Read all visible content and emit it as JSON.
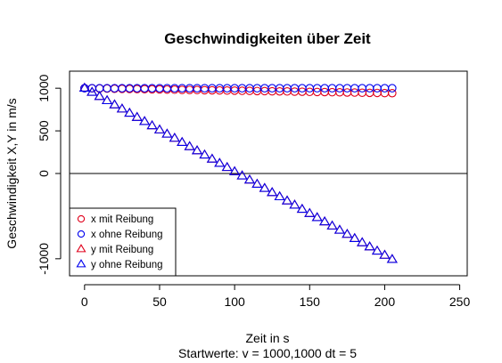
{
  "chart_data": {
    "type": "scatter",
    "title": "Geschwindigkeiten über Zeit",
    "xlabel": "Zeit in s",
    "subtitle": "Startwerte: v = 1000,1000 dt = 5",
    "ylabel": "Geschwindigkeit X,Y in m/s",
    "xlim": [
      -10,
      255
    ],
    "ylim": [
      -1200,
      1200
    ],
    "xticks": [
      0,
      50,
      100,
      150,
      200,
      250
    ],
    "yticks": [
      -1000,
      0,
      500,
      1000
    ],
    "grid": false,
    "reference_lines": [
      {
        "orientation": "horizontal",
        "y": 0
      }
    ],
    "legend_position": "bottom-left",
    "x": [
      0,
      5,
      10,
      15,
      20,
      25,
      30,
      35,
      40,
      45,
      50,
      55,
      60,
      65,
      70,
      75,
      80,
      85,
      90,
      95,
      100,
      105,
      110,
      115,
      120,
      125,
      130,
      135,
      140,
      145,
      150,
      155,
      160,
      165,
      170,
      175,
      180,
      185,
      190,
      195,
      200,
      205
    ],
    "series": [
      {
        "name": "x mit Reibung",
        "marker": "circle",
        "color": "#e0001b",
        "values": [
          1000,
          999,
          997,
          996,
          994,
          993,
          991,
          990,
          989,
          987,
          986,
          984,
          983,
          981,
          980,
          979,
          977,
          976,
          974,
          973,
          972,
          970,
          969,
          967,
          966,
          964,
          963,
          962,
          960,
          959,
          957,
          956,
          955,
          953,
          952,
          950,
          949,
          947,
          946,
          945,
          943,
          942
        ]
      },
      {
        "name": "x ohne Reibung",
        "marker": "circle",
        "color": "#0000ee",
        "values": [
          1000,
          1000,
          1000,
          1000,
          1000,
          1000,
          1000,
          1000,
          1000,
          1000,
          1000,
          1000,
          1000,
          1000,
          1000,
          1000,
          1000,
          1000,
          1000,
          1000,
          1000,
          1000,
          1000,
          1000,
          1000,
          1000,
          1000,
          1000,
          1000,
          1000,
          1000,
          1000,
          1000,
          1000,
          1000,
          1000,
          1000,
          1000,
          1000,
          1000,
          1000,
          1000
        ]
      },
      {
        "name": "y mit Reibung",
        "marker": "triangle",
        "color": "#e0001b",
        "values": [
          1000,
          951,
          902,
          853,
          804,
          755,
          706,
          657,
          608,
          559,
          510,
          461,
          412,
          363,
          314,
          265,
          216,
          167,
          118,
          69,
          20,
          -29,
          -78,
          -127,
          -176,
          -225,
          -274,
          -323,
          -372,
          -421,
          -470,
          -519,
          -568,
          -617,
          -666,
          -715,
          -764,
          -813,
          -862,
          -911,
          -960,
          -1009
        ]
      },
      {
        "name": "y ohne Reibung",
        "marker": "triangle",
        "color": "#0000ee",
        "values": [
          1000,
          951,
          902,
          853,
          804,
          755,
          706,
          657,
          608,
          559,
          510,
          461,
          412,
          363,
          314,
          265,
          216,
          167,
          118,
          69,
          20,
          -29,
          -78,
          -127,
          -176,
          -225,
          -274,
          -323,
          -372,
          -421,
          -470,
          -519,
          -568,
          -617,
          -666,
          -715,
          -764,
          -813,
          -862,
          -911,
          -960,
          -1009
        ]
      }
    ]
  }
}
